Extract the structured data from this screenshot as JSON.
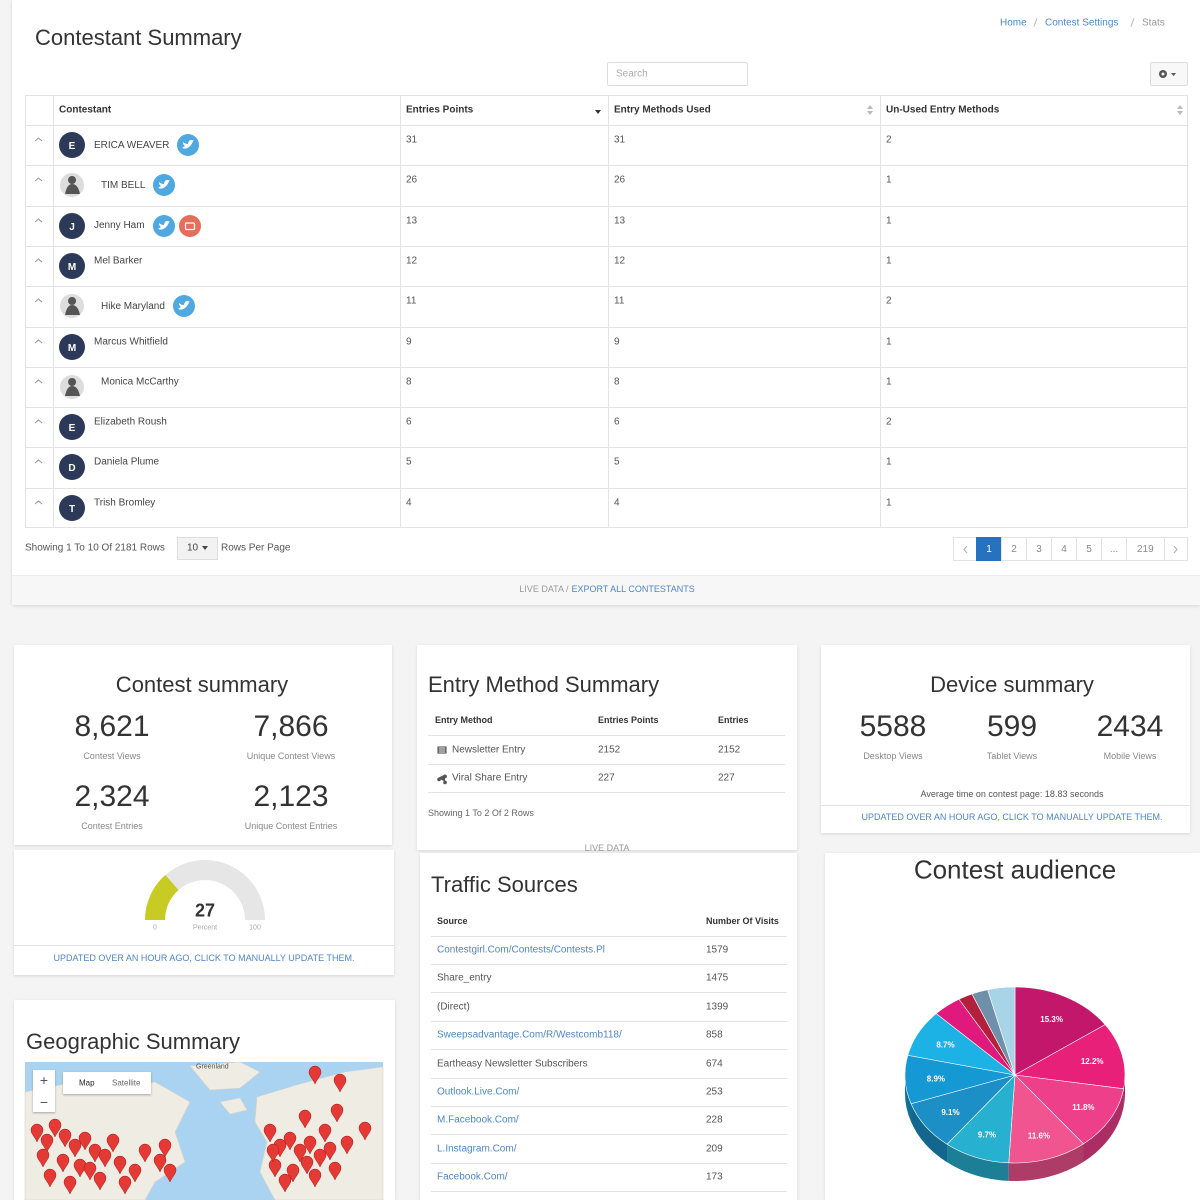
{
  "header": {
    "title": "Contestant Summary",
    "breadcrumbs": [
      "Home",
      "Contest Settings",
      "Stats"
    ],
    "search_placeholder": "Search"
  },
  "contestants": {
    "columns": [
      "Contestant",
      "Entries Points",
      "Entry Methods Used",
      "Un-Used Entry Methods"
    ],
    "rows": [
      {
        "initial": "E",
        "name": "ERICA WEAVER",
        "entries_points": 31,
        "methods_used": 31,
        "unused": 2
      },
      {
        "name": "TIM BELL",
        "entries_points": 26,
        "methods_used": 26,
        "unused": 1
      },
      {
        "initial": "J",
        "name": "Jenny Ham",
        "entries_points": 13,
        "methods_used": 13,
        "unused": 1
      },
      {
        "initial": "M",
        "name": "Mel Barker",
        "entries_points": 12,
        "methods_used": 12,
        "unused": 1
      },
      {
        "name": "Hike Maryland",
        "entries_points": 11,
        "methods_used": 11,
        "unused": 2
      },
      {
        "initial": "M",
        "name": "Marcus Whitfield",
        "entries_points": 9,
        "methods_used": 9,
        "unused": 1
      },
      {
        "name": "Monica McCarthy",
        "entries_points": 8,
        "methods_used": 8,
        "unused": 1
      },
      {
        "initial": "E",
        "name": "Elizabeth Roush",
        "entries_points": 6,
        "methods_used": 6,
        "unused": 2
      },
      {
        "initial": "D",
        "name": "Daniela Plume",
        "entries_points": 5,
        "methods_used": 5,
        "unused": 1
      },
      {
        "initial": "T",
        "name": "Trish Bromley",
        "entries_points": 4,
        "methods_used": 4,
        "unused": 1
      }
    ],
    "summary": "Showing 1 To 10 Of 2181 Rows",
    "page_size": "10",
    "page_size_label": "Rows Per Page",
    "pages": [
      "1",
      "2",
      "3",
      "4",
      "5",
      "...",
      "219"
    ],
    "live_data": "LIVE DATA /",
    "export": "EXPORT ALL CONTESTANTS"
  },
  "contest_summary": {
    "title": "Contest summary",
    "stats": [
      {
        "value": "8,621",
        "label": "Contest Views"
      },
      {
        "value": "7,866",
        "label": "Unique Contest Views"
      },
      {
        "value": "2,324",
        "label": "Contest Entries"
      },
      {
        "value": "2,123",
        "label": "Unique Contest Entries"
      }
    ],
    "gauge": {
      "value": 27,
      "label": "Percent",
      "min": 0,
      "max": 100
    },
    "update": "UPDATED OVER AN HOUR AGO, CLICK TO MANUALLY UPDATE THEM."
  },
  "entry_methods": {
    "title": "Entry Method Summary",
    "columns": [
      "Entry Method",
      "Entries Points",
      "Entries"
    ],
    "rows": [
      [
        "Newsletter Entry",
        2152,
        2152
      ],
      [
        "Viral Share Entry",
        227,
        227
      ]
    ],
    "summary": "Showing 1 To 2 Of 2 Rows",
    "live_data": "LIVE DATA"
  },
  "device_summary": {
    "title": "Device summary",
    "stats": [
      {
        "value": "5588",
        "label": "Desktop Views"
      },
      {
        "value": "599",
        "label": "Tablet Views"
      },
      {
        "value": "2434",
        "label": "Mobile Views"
      }
    ],
    "average": "Average time on contest page: 18.83 seconds",
    "update": "UPDATED OVER AN HOUR AGO, CLICK TO MANUALLY UPDATE THEM."
  },
  "traffic_sources": {
    "title": "Traffic Sources",
    "columns": [
      "Source",
      "Number Of Visits"
    ],
    "rows": [
      {
        "source": "Contestgirl.Com/Contests/Contests.Pl",
        "visits": 1579,
        "link": true
      },
      {
        "source": "Share_entry",
        "visits": 1475,
        "link": false
      },
      {
        "source": "(Direct)",
        "visits": 1399,
        "link": false
      },
      {
        "source": "Sweepsadvantage.Com/R/Westcomb118/",
        "visits": 858,
        "link": true
      },
      {
        "source": "Eartheasy Newsletter Subscribers",
        "visits": 674,
        "link": false
      },
      {
        "source": "Outlook.Live.Com/",
        "visits": 253,
        "link": true
      },
      {
        "source": "M.Facebook.Com/",
        "visits": 228,
        "link": true
      },
      {
        "source": "L.Instagram.Com/",
        "visits": 209,
        "link": true
      },
      {
        "source": "Facebook.Com/",
        "visits": 173,
        "link": true
      }
    ]
  },
  "audience": {
    "type": "pie",
    "title": "Contest audience",
    "values": [
      15.3,
      12.2,
      11.8,
      11.6,
      9.7,
      9.1,
      8.9,
      8.7,
      4.2,
      2.1,
      2.4,
      4.0
    ],
    "value_labels": [
      "15.3%",
      "12.2%",
      "11.8%",
      "11.6%",
      "9.7%",
      "9.1%",
      "8.9%",
      "8.7%",
      null,
      null,
      null,
      null
    ],
    "colors": [
      "#c2176b",
      "#e8207a",
      "#ee3f8a",
      "#f0558f",
      "#27b0cf",
      "#1b8fc6",
      "#1599d4",
      "#1db2e6",
      "#e0197d",
      "#b4203c",
      "#6f90a8",
      "#a8d4e8"
    ]
  },
  "geographic": {
    "title": "Geographic Summary",
    "map_types": [
      "Map",
      "Satellite"
    ],
    "zoom_in": "+",
    "zoom_out": "−",
    "place": "Greenland"
  }
}
